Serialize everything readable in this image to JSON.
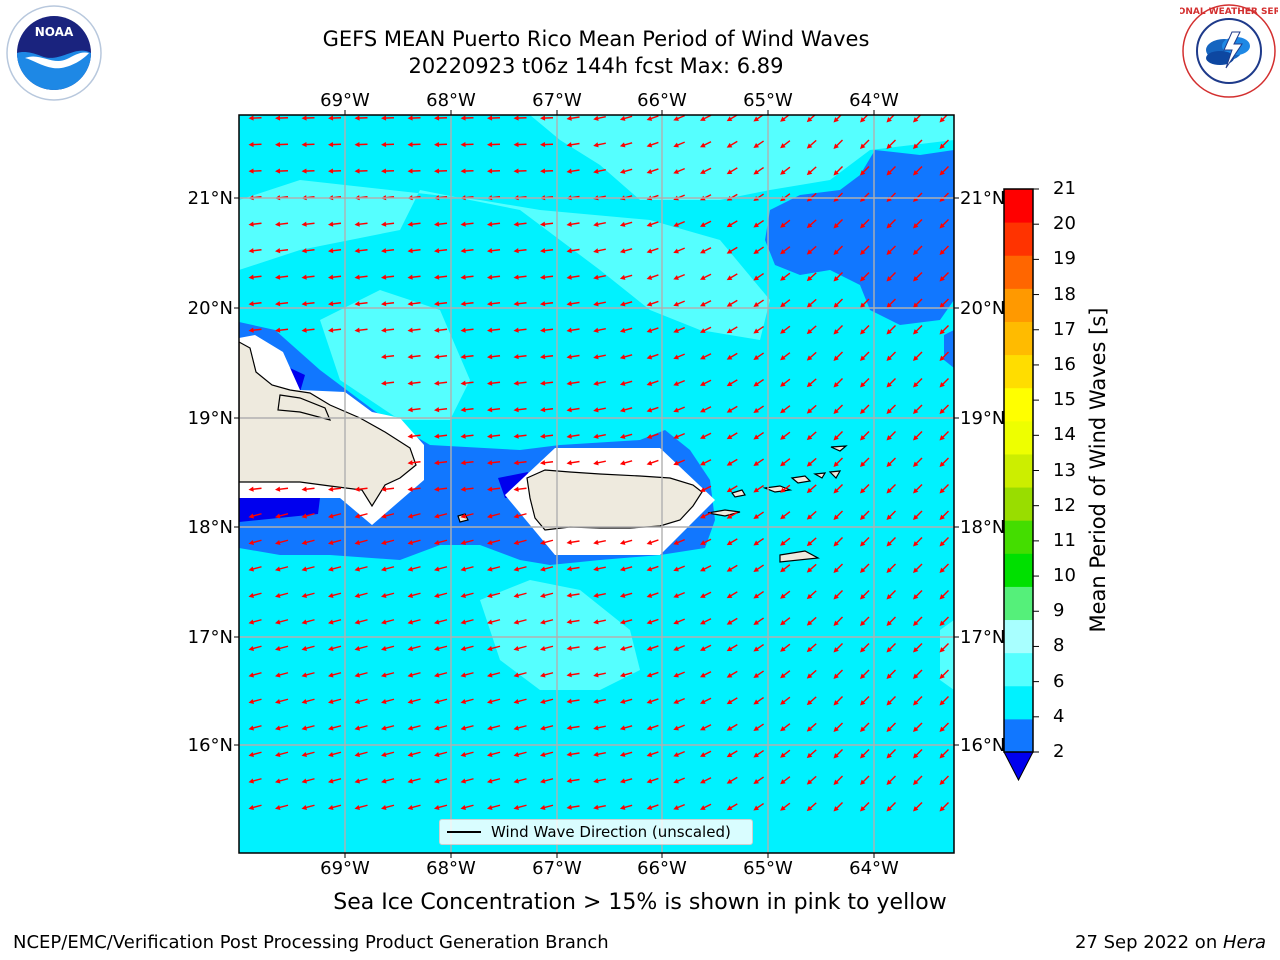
{
  "title": {
    "line1": "GEFS MEAN Puerto Rico Mean Period of Wind Waves",
    "line2": "20220923 t06z 144h fcst   Max: 6.89"
  },
  "map": {
    "lon_labels": [
      "69°W",
      "68°W",
      "67°W",
      "66°W",
      "65°W",
      "64°W"
    ],
    "lat_labels": [
      "21°N",
      "20°N",
      "19°N",
      "18°N",
      "17°N",
      "16°N"
    ],
    "arrow_color": "#ff0000",
    "ocean_colors": {
      "band_2_4": "#1177ff",
      "band_4_6": "#00f2ff",
      "band_6_8": "#55ffff",
      "below_2": "#0000ee"
    },
    "land_color": "#eeeade"
  },
  "legend": {
    "label": "Wind Wave Direction (unscaled)"
  },
  "colorbar": {
    "title": "Mean Period of Wind Waves [s]",
    "ticks": [
      "2",
      "4",
      "6",
      "8",
      "9",
      "10",
      "11",
      "12",
      "13",
      "14",
      "15",
      "16",
      "17",
      "18",
      "19",
      "20",
      "21"
    ],
    "colors": [
      "#1177ff",
      "#00f2ff",
      "#55ffff",
      "#a8ffff",
      "#55f07a",
      "#00e000",
      "#44dd00",
      "#99dd00",
      "#ccee00",
      "#eeff00",
      "#ffff00",
      "#ffdd00",
      "#ffbb00",
      "#ff9900",
      "#ff6600",
      "#ff3300",
      "#ff0000"
    ],
    "extend_color": "#0000ee"
  },
  "caption": "Sea Ice Concentration > 15% is shown in pink to yellow",
  "credit": "NCEP/EMC/Verification Post Processing Product Generation Branch",
  "date": {
    "prefix": "27 Sep 2022 on ",
    "host": "Hera"
  },
  "logos": {
    "left_text": "NOAA",
    "right_text": "NATIONAL WEATHER SERVICE"
  }
}
